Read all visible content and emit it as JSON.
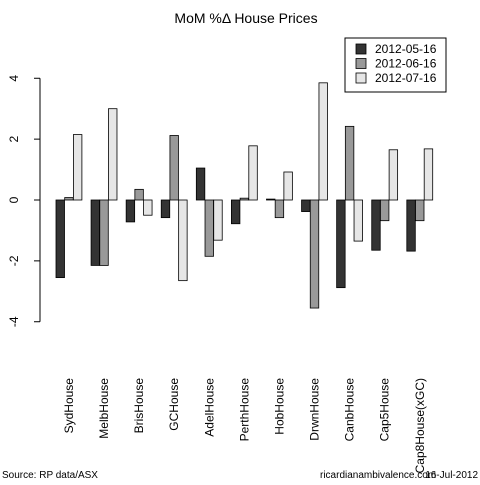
{
  "chart_data": {
    "type": "bar",
    "title": "MoM %Δ House Prices",
    "xlabel": "",
    "ylabel": "",
    "ylim": [
      -4.6,
      4.6
    ],
    "yticks": [
      "-4",
      "-2",
      "0",
      "2",
      "4"
    ],
    "ytick_values": [
      -4,
      -2,
      0,
      2,
      4
    ],
    "grid": false,
    "legend_position": "top-right",
    "categories": [
      "SydHouse",
      "MelbHouse",
      "BrisHouse",
      "GCHouse",
      "AdelHouse",
      "PerthHouse",
      "HobHouse",
      "DrwnHouse",
      "CanbHouse",
      "Cap5House",
      "Cap8House(xGC)"
    ],
    "series": [
      {
        "name": "2012-05-16",
        "color": "#333333",
        "values": [
          -2.55,
          -2.15,
          -0.72,
          -0.58,
          1.05,
          -0.78,
          0.03,
          -0.38,
          -2.88,
          -1.65,
          -1.68
        ]
      },
      {
        "name": "2012-06-16",
        "color": "#999999",
        "values": [
          0.08,
          -2.15,
          0.35,
          2.12,
          -1.85,
          0.06,
          -0.58,
          -3.55,
          2.42,
          -0.68,
          -0.68
        ]
      },
      {
        "name": "2012-07-16",
        "color": "#e6e6e6",
        "values": [
          2.15,
          3.0,
          -0.5,
          -2.65,
          -1.32,
          1.78,
          0.92,
          3.85,
          -1.35,
          1.65,
          1.68
        ]
      }
    ]
  },
  "footer": {
    "source": "Source: RP data/ASX",
    "site": "ricardianambivalence.com",
    "date": "16-Jul-2012"
  }
}
